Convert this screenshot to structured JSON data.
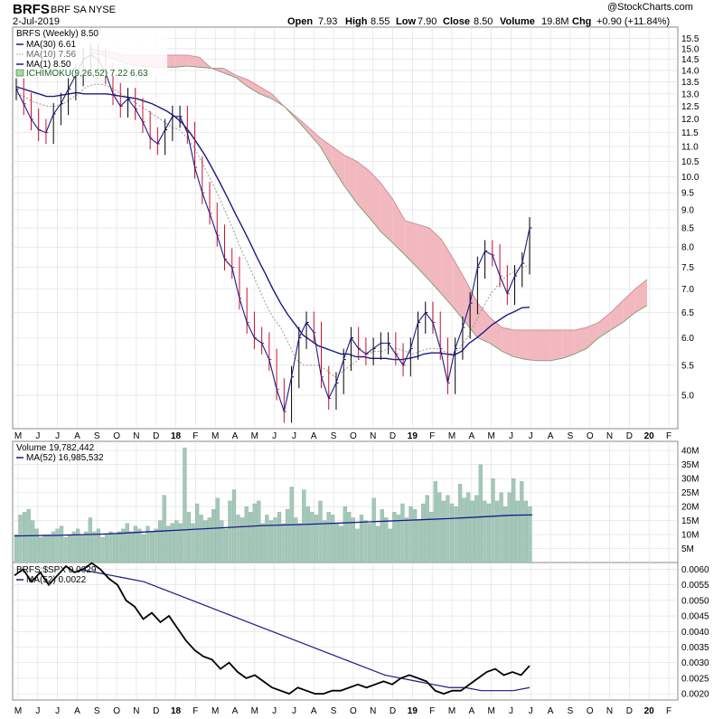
{
  "header": {
    "symbol": "BRFS",
    "name": "BRF SA",
    "exchange": "NYSE",
    "date": "2-Jul-2019",
    "watermark": "@StockCharts.com",
    "open_label": "Open",
    "open": "7.93",
    "high_label": "High",
    "high": "8.55",
    "low_label": "Low",
    "low": "7.90",
    "close_label": "Close",
    "close": "8.50",
    "volume_label": "Volume",
    "volume": "19.8M",
    "chg_label": "Chg",
    "chg": "+0.90 (+11.84%)"
  },
  "colors": {
    "price": "#000000",
    "down_bar": "#c8102e",
    "ma30": "#1a1a8c",
    "ma10": "#999999",
    "cloud_bear": "#f2b8bf",
    "cloud_bull": "#a9d8a9",
    "volume_bar": "#a4c8b8",
    "grid": "#dddddd"
  },
  "x_axis": {
    "labels": [
      "M",
      "J",
      "J",
      "A",
      "S",
      "O",
      "N",
      "D",
      "18",
      "F",
      "M",
      "A",
      "M",
      "J",
      "J",
      "A",
      "S",
      "O",
      "N",
      "D",
      "19",
      "F",
      "M",
      "A",
      "M",
      "J",
      "J",
      "A",
      "S",
      "O",
      "N",
      "D",
      "20",
      "F"
    ],
    "bold": [
      "18",
      "19",
      "20"
    ]
  },
  "chart_data": [
    {
      "type": "line",
      "panel": "price",
      "title": "BRFS (Weekly) 8.50",
      "legend": [
        {
          "name": "MA(30) 6.61",
          "style": "solid",
          "color": "#1a1a8c"
        },
        {
          "name": "MA(10) 7.56",
          "style": "dotted",
          "color": "#999999"
        },
        {
          "name": "MA(1) 8.50",
          "style": "solid",
          "color": "#1a1a8c"
        },
        {
          "name": "ICHIMOKU(9,26,52) 7.22 6.63",
          "style": "cloud",
          "color": "#2e7d32"
        }
      ],
      "yscale": "log",
      "ylim": [
        4.55,
        15.7
      ],
      "yticks": [
        "5.0",
        "5.5",
        "6.0",
        "6.5",
        "7.0",
        "7.5",
        "8.0",
        "8.5",
        "9.0",
        "9.5",
        "10.0",
        "10.5",
        "11.0",
        "11.5",
        "12.0",
        "12.5",
        "13.0",
        "13.5",
        "14.0",
        "14.5",
        "15.0",
        "15.5"
      ],
      "price": [
        13.2,
        12.6,
        12.0,
        11.6,
        11.5,
        12.2,
        12.6,
        13.2,
        13.8,
        14.5,
        14.7,
        14.5,
        13.9,
        13.0,
        12.5,
        12.8,
        12.4,
        11.9,
        11.3,
        11.1,
        11.6,
        12.1,
        12.1,
        11.5,
        10.3,
        9.5,
        8.9,
        8.3,
        7.7,
        7.5,
        6.8,
        6.3,
        6.0,
        5.9,
        5.6,
        5.1,
        4.75,
        5.3,
        6.0,
        6.3,
        6.1,
        5.3,
        4.95,
        5.2,
        5.6,
        6.0,
        5.8,
        5.7,
        5.8,
        5.9,
        5.9,
        5.7,
        5.5,
        5.8,
        6.3,
        6.5,
        6.3,
        5.8,
        5.2,
        5.8,
        6.2,
        6.7,
        7.5,
        7.9,
        7.8,
        7.3,
        6.9,
        7.3,
        7.6,
        8.5
      ],
      "ma30": [
        13.3,
        13.2,
        13.1,
        13.0,
        12.9,
        12.9,
        12.95,
        13.0,
        13.05,
        13.0,
        13.0,
        13.0,
        13.0,
        12.95,
        12.9,
        12.85,
        12.8,
        12.7,
        12.6,
        12.45,
        12.3,
        12.1,
        11.85,
        11.5,
        11.1,
        10.7,
        10.25,
        9.8,
        9.35,
        8.9,
        8.5,
        8.1,
        7.7,
        7.35,
        7.0,
        6.7,
        6.45,
        6.25,
        6.05,
        5.95,
        5.85,
        5.8,
        5.75,
        5.7,
        5.7,
        5.65,
        5.65,
        5.62,
        5.62,
        5.62,
        5.6,
        5.6,
        5.62,
        5.65,
        5.7,
        5.72,
        5.72,
        5.7,
        5.68,
        5.75,
        5.9,
        6.0,
        6.12,
        6.25,
        6.35,
        6.45,
        6.52,
        6.6,
        6.61
      ],
      "ma10": [
        13.0,
        12.9,
        12.7,
        12.6,
        12.5,
        12.5,
        12.6,
        12.8,
        13.0,
        13.3,
        13.4,
        13.4,
        13.3,
        13.1,
        12.9,
        12.7,
        12.5,
        12.3,
        12.1,
        11.9,
        11.7,
        11.6,
        11.3,
        10.9,
        10.4,
        9.9,
        9.4,
        8.9,
        8.4,
        7.9,
        7.5,
        7.1,
        6.7,
        6.4,
        6.2,
        5.9,
        5.6,
        5.5,
        5.5,
        5.5,
        5.4,
        5.3,
        5.4,
        5.5,
        5.6,
        5.7,
        5.75,
        5.75,
        5.8,
        5.8,
        5.75,
        5.7,
        5.75,
        5.8,
        5.8,
        5.75,
        5.7,
        5.8,
        6.0,
        6.3,
        6.6,
        6.9,
        7.1,
        7.3,
        7.4,
        7.5,
        7.56
      ],
      "cloud_span_a": [
        14.8,
        14.7,
        14.5,
        14.3,
        14.2,
        14.15,
        14.15,
        14.15,
        14.2,
        14.15,
        14.1,
        13.9,
        13.7,
        13.3,
        13.0,
        12.8,
        12.5,
        12.0,
        11.5,
        11.0,
        10.3,
        9.7,
        9.2,
        8.8,
        8.4,
        8.1,
        7.8,
        7.5,
        7.2,
        6.9,
        6.6,
        6.3,
        6.0,
        5.9,
        5.75,
        5.65,
        5.6,
        5.58,
        5.58,
        5.62,
        5.7,
        5.8,
        6.0,
        6.15,
        6.3,
        6.5,
        6.65
      ],
      "cloud_span_b": [
        15.0,
        14.9,
        14.8,
        14.7,
        14.7,
        14.7,
        14.7,
        14.7,
        14.7,
        14.6,
        14.1,
        14.1,
        13.8,
        13.6,
        13.3,
        13.0,
        12.5,
        12.1,
        11.7,
        11.3,
        11.0,
        10.7,
        10.5,
        10.2,
        9.8,
        9.3,
        8.7,
        8.6,
        8.5,
        8.2,
        7.7,
        7.2,
        6.7,
        6.4,
        6.2,
        6.15,
        6.15,
        6.15,
        6.15,
        6.15,
        6.15,
        6.2,
        6.3,
        6.5,
        6.75,
        7.0,
        7.22
      ]
    },
    {
      "type": "bar",
      "panel": "volume",
      "title": "Volume 19,782,442",
      "legend": [
        {
          "name": "MA(52) 16,985,532",
          "color": "#1a1a8c"
        }
      ],
      "units": "millions",
      "ylim": [
        0,
        42
      ],
      "yticks": [
        "5M",
        "10M",
        "15M",
        "20M",
        "25M",
        "30M",
        "35M",
        "40M"
      ],
      "values": [
        10,
        17,
        18,
        19,
        15,
        12,
        9,
        10,
        10,
        11,
        12,
        13,
        9,
        10,
        11,
        12,
        10,
        11,
        16,
        11,
        12,
        9,
        10,
        11,
        10,
        11,
        12,
        14,
        11,
        13,
        12,
        10,
        13,
        11,
        12,
        15,
        24,
        13,
        14,
        15,
        14,
        41,
        18,
        14,
        21,
        17,
        15,
        16,
        19,
        23,
        15,
        12,
        22,
        26,
        17,
        16,
        20,
        18,
        21,
        22,
        14,
        17,
        15,
        16,
        18,
        14,
        19,
        27,
        16,
        14,
        26,
        20,
        18,
        17,
        22,
        15,
        18,
        17,
        14,
        13,
        20,
        18,
        16,
        12,
        17,
        15,
        14,
        23,
        13,
        19,
        16,
        12,
        18,
        17,
        21,
        16,
        20,
        19,
        15,
        21,
        24,
        18,
        29,
        25,
        22,
        24,
        21,
        20,
        28,
        23,
        25,
        22,
        24,
        35,
        22,
        21,
        30,
        22,
        25,
        20,
        25,
        30,
        22,
        29,
        22,
        20
      ],
      "ma52": [
        9.5,
        9.6,
        9.7,
        9.9,
        10.1,
        10.4,
        10.8,
        11.2,
        11.6,
        12.0,
        12.4,
        12.8,
        13.2,
        13.4,
        13.6,
        13.9,
        14.2,
        14.5,
        14.8,
        15.1,
        15.4,
        15.7,
        16.1,
        16.5,
        16.9,
        17.0
      ]
    },
    {
      "type": "line",
      "panel": "relative",
      "title": "BRFS:$SPX 0.0029",
      "legend": [
        {
          "name": "MA(52) 0.0022",
          "color": "#1a1a8c"
        }
      ],
      "ylim": [
        0.0018,
        0.0061
      ],
      "yticks": [
        "0.0020",
        "0.0025",
        "0.0030",
        "0.0035",
        "0.0040",
        "0.0045",
        "0.0050",
        "0.0055",
        "0.0060"
      ],
      "ratio": [
        0.0058,
        0.006,
        0.0056,
        0.0059,
        0.0055,
        0.0058,
        0.0061,
        0.0059,
        0.006,
        0.0062,
        0.006,
        0.0057,
        0.0055,
        0.005,
        0.0048,
        0.0044,
        0.0046,
        0.0043,
        0.0045,
        0.0041,
        0.0037,
        0.0034,
        0.0032,
        0.0031,
        0.0028,
        0.003,
        0.0027,
        0.0025,
        0.0026,
        0.0024,
        0.0022,
        0.0021,
        0.002,
        0.0022,
        0.0021,
        0.002,
        0.002,
        0.0021,
        0.0021,
        0.0022,
        0.0023,
        0.0022,
        0.0023,
        0.0024,
        0.0023,
        0.0025,
        0.0026,
        0.0025,
        0.0024,
        0.0021,
        0.002,
        0.0021,
        0.0021,
        0.0023,
        0.0025,
        0.0027,
        0.0028,
        0.0026,
        0.0027,
        0.0026,
        0.0029
      ],
      "ma52": [
        0.006,
        0.0059,
        0.0058,
        0.0057,
        0.0056,
        0.0054,
        0.0052,
        0.005,
        0.0048,
        0.0046,
        0.0044,
        0.0042,
        0.004,
        0.0038,
        0.0036,
        0.0034,
        0.0032,
        0.003,
        0.0028,
        0.0026,
        0.0025,
        0.0024,
        0.0023,
        0.0022,
        0.0022,
        0.0021,
        0.0021,
        0.0021,
        0.0022
      ]
    }
  ]
}
